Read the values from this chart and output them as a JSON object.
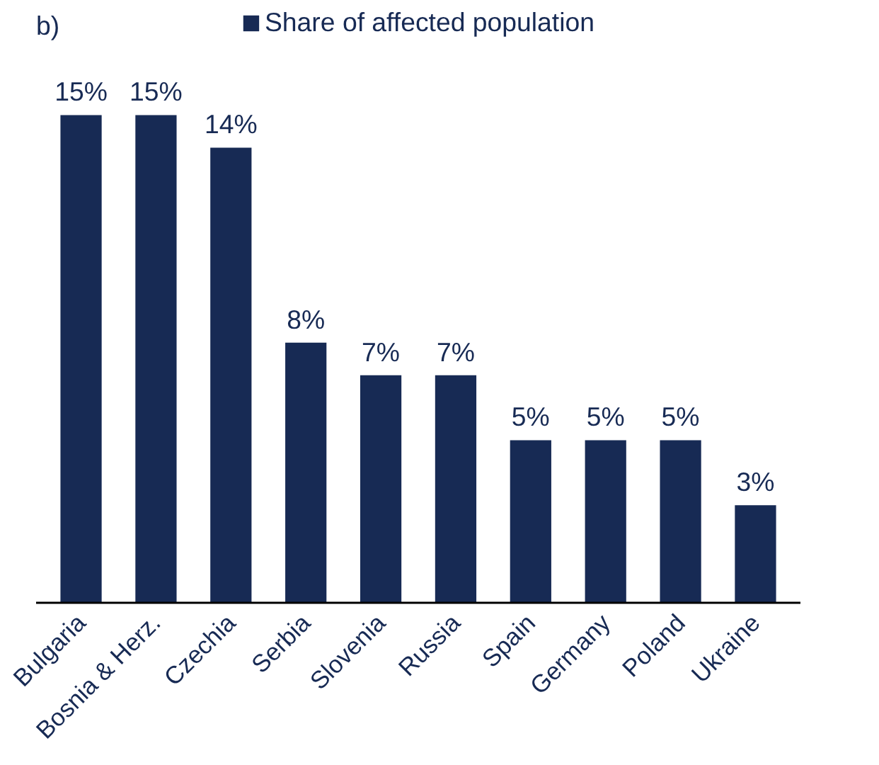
{
  "chart_data": {
    "type": "bar",
    "annotations": [
      "b)"
    ],
    "categories": [
      "Bulgaria",
      "Bosnia & Herz.",
      "Czechia",
      "Serbia",
      "Slovenia",
      "Russia",
      "Spain",
      "Germany",
      "Poland",
      "Ukraine"
    ],
    "series": [
      {
        "name": "Share of affected population",
        "color": "#172a54",
        "values": [
          15,
          15,
          14,
          8,
          7,
          7,
          5,
          5,
          5,
          3
        ],
        "value_labels": [
          "15%",
          "15%",
          "14%",
          "8%",
          "7%",
          "7%",
          "5%",
          "5%",
          "5%",
          "3%"
        ]
      }
    ],
    "legend": "top"
  }
}
